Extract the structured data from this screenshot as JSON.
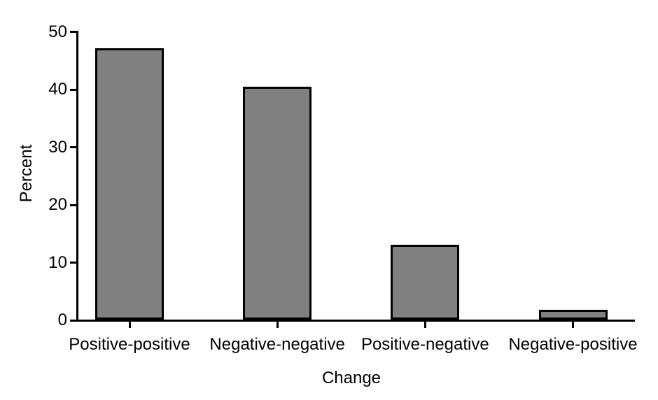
{
  "chart_data": {
    "type": "bar",
    "title": "",
    "categories": [
      "Positive-positive",
      "Negative-negative",
      "Positive-negative",
      "Negative-positive"
    ],
    "values": [
      47,
      40.4,
      13,
      1.7
    ],
    "xlabel": "Change",
    "ylabel": "Percent",
    "ylim": [
      0,
      50
    ],
    "yticks": [
      0,
      10,
      20,
      30,
      40,
      50
    ],
    "grid": false,
    "legend": false,
    "bar_fill_color": "#808080",
    "bar_border_color": "#000000",
    "axis_color": "#000000",
    "text_color": "#000000",
    "background_color": "#ffffff"
  }
}
